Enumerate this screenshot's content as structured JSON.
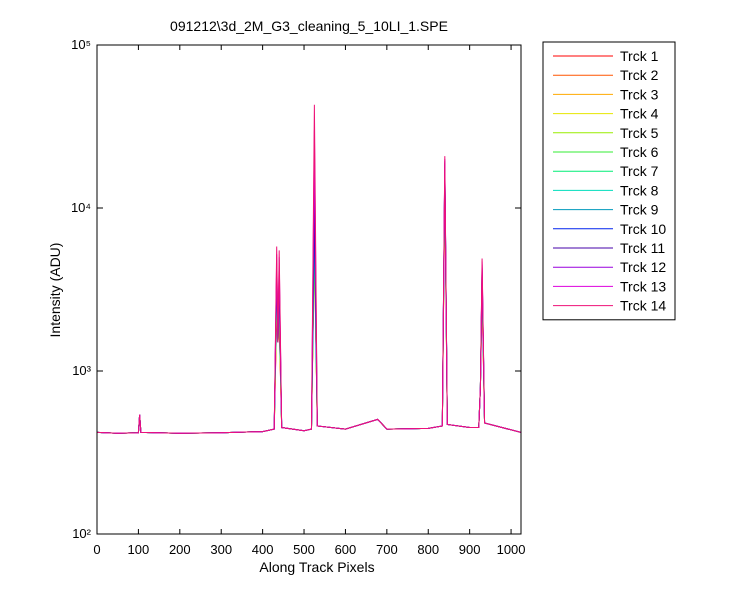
{
  "chart_data": {
    "type": "line",
    "title": "091212\\3d_2M_G3_cleaning_5_10LI_1.SPE",
    "xlabel": "Along Track Pixels",
    "ylabel": "Intensity (ADU)",
    "log_y": true,
    "legend": "outside-right",
    "xlim": [
      0,
      1024
    ],
    "ylim": [
      100,
      100000
    ],
    "xticks": [
      0,
      100,
      200,
      300,
      400,
      500,
      600,
      700,
      800,
      900,
      1000
    ],
    "yticks": [
      {
        "value": 100,
        "label": "10²"
      },
      {
        "value": 1000,
        "label": "10³"
      },
      {
        "value": 10000,
        "label": "10⁴"
      },
      {
        "value": 100000,
        "label": "10⁵"
      }
    ],
    "x": [
      0,
      50,
      100,
      103,
      106,
      200,
      300,
      400,
      428,
      434,
      437,
      440,
      446,
      500,
      518,
      525,
      532,
      600,
      678,
      700,
      800,
      834,
      840,
      846,
      900,
      922,
      926,
      930,
      936,
      1024
    ],
    "series": [
      {
        "name": "Trck 1",
        "color": "#ff0000",
        "values": [
          420,
          415,
          418,
          540,
          420,
          415,
          418,
          425,
          440,
          2200,
          1500,
          2000,
          450,
          430,
          440,
          6000,
          460,
          440,
          505,
          440,
          445,
          460,
          14000,
          470,
          450,
          450,
          800,
          3000,
          480,
          420
        ]
      },
      {
        "name": "Trck 2",
        "color": "#ff5500",
        "values": [
          420,
          415,
          418,
          540,
          420,
          415,
          418,
          425,
          440,
          2400,
          1500,
          2100,
          450,
          430,
          440,
          6500,
          460,
          440,
          505,
          440,
          445,
          460,
          14500,
          470,
          450,
          450,
          800,
          3200,
          480,
          420
        ]
      },
      {
        "name": "Trck 3",
        "color": "#ffaa00",
        "values": [
          420,
          415,
          418,
          540,
          420,
          415,
          418,
          425,
          440,
          2600,
          1500,
          2300,
          450,
          430,
          440,
          7000,
          460,
          440,
          505,
          440,
          445,
          460,
          15000,
          470,
          450,
          450,
          800,
          3400,
          480,
          420
        ]
      },
      {
        "name": "Trck 4",
        "color": "#e6e600",
        "values": [
          420,
          415,
          418,
          540,
          420,
          415,
          418,
          425,
          440,
          2800,
          1500,
          2500,
          450,
          430,
          440,
          6800,
          460,
          440,
          505,
          440,
          445,
          460,
          15500,
          470,
          450,
          450,
          800,
          3500,
          480,
          420
        ]
      },
      {
        "name": "Trck 5",
        "color": "#99ee00",
        "values": [
          420,
          415,
          418,
          540,
          420,
          415,
          418,
          425,
          440,
          3000,
          1500,
          2700,
          450,
          430,
          440,
          5500,
          460,
          440,
          505,
          440,
          445,
          460,
          16000,
          470,
          450,
          450,
          800,
          3600,
          480,
          420
        ]
      },
      {
        "name": "Trck 6",
        "color": "#33ee33",
        "values": [
          420,
          415,
          418,
          540,
          420,
          415,
          418,
          425,
          440,
          3100,
          1500,
          2900,
          450,
          430,
          440,
          6200,
          460,
          440,
          505,
          440,
          445,
          460,
          16500,
          470,
          450,
          450,
          800,
          3700,
          480,
          420
        ]
      },
      {
        "name": "Trck 7",
        "color": "#00ee77",
        "values": [
          420,
          415,
          418,
          540,
          420,
          415,
          418,
          425,
          440,
          3300,
          1500,
          3000,
          450,
          430,
          440,
          7200,
          460,
          440,
          505,
          440,
          445,
          460,
          17000,
          470,
          450,
          450,
          800,
          3800,
          480,
          420
        ]
      },
      {
        "name": "Trck 8",
        "color": "#00ddbb",
        "values": [
          420,
          415,
          418,
          540,
          420,
          415,
          418,
          425,
          440,
          3500,
          1500,
          3200,
          450,
          430,
          440,
          8000,
          460,
          440,
          505,
          440,
          445,
          460,
          17500,
          470,
          450,
          450,
          800,
          3900,
          480,
          420
        ]
      },
      {
        "name": "Trck 9",
        "color": "#0099bb",
        "values": [
          420,
          415,
          418,
          540,
          420,
          415,
          418,
          425,
          440,
          3700,
          1500,
          3400,
          450,
          430,
          440,
          9000,
          460,
          440,
          505,
          440,
          445,
          460,
          18000,
          470,
          450,
          450,
          800,
          4000,
          480,
          420
        ]
      },
      {
        "name": "Trck 10",
        "color": "#0022ee",
        "values": [
          420,
          415,
          418,
          540,
          420,
          415,
          418,
          425,
          440,
          3900,
          1500,
          3600,
          450,
          430,
          440,
          10000,
          460,
          440,
          505,
          440,
          445,
          460,
          18500,
          470,
          450,
          450,
          800,
          4200,
          480,
          420
        ]
      },
      {
        "name": "Trck 11",
        "color": "#4400aa",
        "values": [
          420,
          415,
          418,
          540,
          420,
          415,
          418,
          425,
          440,
          4200,
          1500,
          3900,
          450,
          430,
          440,
          12000,
          460,
          440,
          505,
          440,
          445,
          460,
          19000,
          470,
          450,
          450,
          800,
          4300,
          480,
          420
        ]
      },
      {
        "name": "Trck 12",
        "color": "#9900dd",
        "values": [
          420,
          415,
          418,
          540,
          420,
          415,
          418,
          425,
          440,
          4600,
          1500,
          4300,
          450,
          430,
          440,
          20000,
          460,
          440,
          505,
          440,
          445,
          460,
          19500,
          470,
          450,
          450,
          800,
          4500,
          480,
          420
        ]
      },
      {
        "name": "Trck 13",
        "color": "#dd00dd",
        "values": [
          420,
          415,
          418,
          540,
          420,
          415,
          418,
          425,
          440,
          5200,
          1500,
          5000,
          450,
          430,
          440,
          30000,
          460,
          440,
          505,
          440,
          445,
          460,
          20000,
          470,
          450,
          450,
          800,
          4700,
          480,
          420
        ]
      },
      {
        "name": "Trck 14",
        "color": "#ee1177",
        "values": [
          420,
          415,
          418,
          540,
          420,
          415,
          418,
          425,
          440,
          5800,
          1500,
          5500,
          450,
          430,
          440,
          43000,
          460,
          440,
          505,
          440,
          445,
          460,
          20800,
          470,
          450,
          450,
          800,
          4900,
          480,
          420
        ]
      }
    ]
  }
}
